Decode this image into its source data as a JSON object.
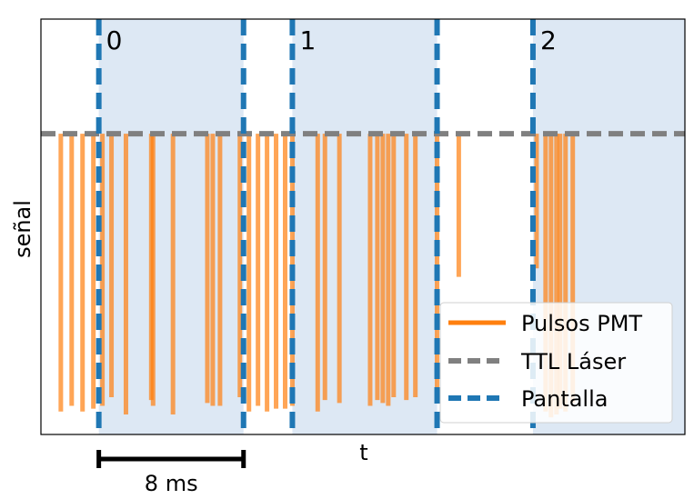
{
  "chart_data": {
    "type": "line",
    "title": "",
    "xlabel": "t",
    "ylabel": "señal",
    "xlim": [
      -3.2,
      32.4
    ],
    "ylim": [
      -1.05,
      0.4
    ],
    "grid": false,
    "legend_position": "lower-right",
    "scale_bar": {
      "label": "8 ms",
      "start": 0,
      "length": 8
    },
    "colors": {
      "pmt": "#ff7f0e",
      "ttl": "#808080",
      "pantalla": "#1f77b4",
      "shade": "#c6d9ec"
    },
    "series": [
      {
        "name": "Pulsos PMT",
        "style": "solid",
        "color": "#ff7f0e",
        "pulses": [
          {
            "t": -2.1,
            "depth": -0.97
          },
          {
            "t": -1.5,
            "depth": -0.95
          },
          {
            "t": -0.9,
            "depth": -0.97
          },
          {
            "t": -0.3,
            "depth": -0.96
          },
          {
            "t": 0.2,
            "depth": -0.95
          },
          {
            "t": 0.7,
            "depth": -0.92
          },
          {
            "t": 1.5,
            "depth": -0.98
          },
          {
            "t": 2.9,
            "depth": -0.93
          },
          {
            "t": 3.0,
            "depth": -0.95
          },
          {
            "t": 4.1,
            "depth": -0.98
          },
          {
            "t": 6.0,
            "depth": -0.94
          },
          {
            "t": 6.3,
            "depth": -0.95
          },
          {
            "t": 6.7,
            "depth": -0.95
          },
          {
            "t": 7.8,
            "depth": -0.92
          },
          {
            "t": 8.3,
            "depth": -0.97
          },
          {
            "t": 8.8,
            "depth": -0.95
          },
          {
            "t": 9.3,
            "depth": -0.97
          },
          {
            "t": 9.8,
            "depth": -0.96
          },
          {
            "t": 10.3,
            "depth": -0.96
          },
          {
            "t": 10.7,
            "depth": -0.95
          },
          {
            "t": 12.1,
            "depth": -0.97
          },
          {
            "t": 12.5,
            "depth": -0.93
          },
          {
            "t": 13.3,
            "depth": -0.94
          },
          {
            "t": 15.0,
            "depth": -0.95
          },
          {
            "t": 15.4,
            "depth": -0.93
          },
          {
            "t": 15.7,
            "depth": -0.94
          },
          {
            "t": 16.0,
            "depth": -0.95
          },
          {
            "t": 16.3,
            "depth": -0.92
          },
          {
            "t": 17.0,
            "depth": -0.93
          },
          {
            "t": 17.5,
            "depth": -0.92
          },
          {
            "t": 18.7,
            "depth": -0.94
          },
          {
            "t": 19.9,
            "depth": -0.5
          },
          {
            "t": 24.2,
            "depth": -0.47
          },
          {
            "t": 24.7,
            "depth": -0.97
          },
          {
            "t": 25.0,
            "depth": -0.99
          },
          {
            "t": 25.3,
            "depth": -0.98
          },
          {
            "t": 25.5,
            "depth": -0.96
          },
          {
            "t": 25.8,
            "depth": -0.97
          },
          {
            "t": 26.2,
            "depth": -0.94
          }
        ]
      },
      {
        "name": "TTL Láser",
        "style": "dashed",
        "color": "#808080",
        "level": 0
      },
      {
        "name": "Pantalla",
        "style": "dashed",
        "color": "#1f77b4",
        "markers": [
          {
            "t": 0,
            "label": "0"
          },
          {
            "t": 8,
            "label": ""
          },
          {
            "t": 10.7,
            "label": "1"
          },
          {
            "t": 18.7,
            "label": ""
          },
          {
            "t": 24.0,
            "label": "2"
          }
        ]
      }
    ],
    "shaded_intervals": [
      [
        0,
        8
      ],
      [
        10.7,
        18.7
      ],
      [
        24.0,
        32.4
      ]
    ]
  }
}
